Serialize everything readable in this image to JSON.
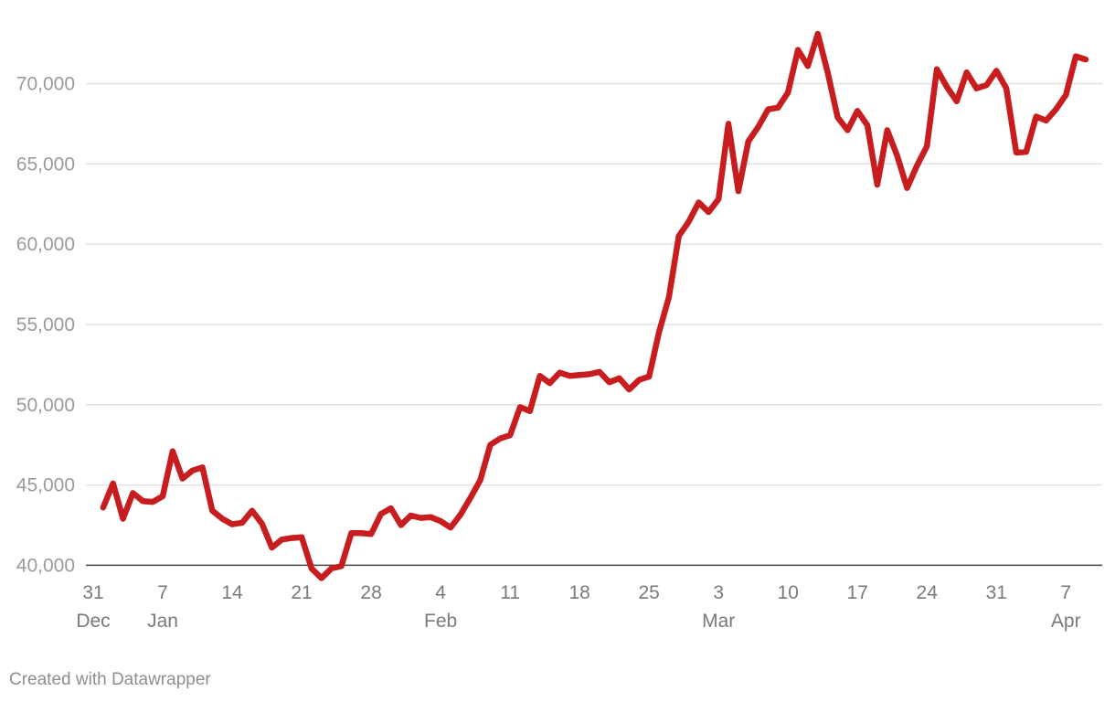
{
  "credit": "Created with Datawrapper",
  "colors": {
    "line": "#c81d1f",
    "grid": "#e1e1e1",
    "axis_text": "#9a9a9a",
    "baseline": "#444444"
  },
  "chart_data": {
    "type": "line",
    "title": "",
    "xlabel": "",
    "ylabel": "",
    "grid": true,
    "legend": "none",
    "ylim": [
      39000,
      73500
    ],
    "xlim": [
      "2023-12-31",
      "2024-04-09"
    ],
    "y_ticks": [
      {
        "value": 40000,
        "label": "40,000"
      },
      {
        "value": 45000,
        "label": "45,000"
      },
      {
        "value": 50000,
        "label": "50,000"
      },
      {
        "value": 55000,
        "label": "55,000"
      },
      {
        "value": 60000,
        "label": "60,000"
      },
      {
        "value": 65000,
        "label": "65,000"
      },
      {
        "value": 70000,
        "label": "70,000"
      }
    ],
    "x_ticks": [
      {
        "date": "2023-12-31",
        "label": "31",
        "sublabel": "Dec"
      },
      {
        "date": "2024-01-07",
        "label": "7",
        "sublabel": "Jan"
      },
      {
        "date": "2024-01-14",
        "label": "14",
        "sublabel": ""
      },
      {
        "date": "2024-01-21",
        "label": "21",
        "sublabel": ""
      },
      {
        "date": "2024-01-28",
        "label": "28",
        "sublabel": ""
      },
      {
        "date": "2024-02-04",
        "label": "4",
        "sublabel": "Feb"
      },
      {
        "date": "2024-02-11",
        "label": "11",
        "sublabel": ""
      },
      {
        "date": "2024-02-18",
        "label": "18",
        "sublabel": ""
      },
      {
        "date": "2024-02-25",
        "label": "25",
        "sublabel": ""
      },
      {
        "date": "2024-03-03",
        "label": "3",
        "sublabel": "Mar"
      },
      {
        "date": "2024-03-10",
        "label": "10",
        "sublabel": ""
      },
      {
        "date": "2024-03-17",
        "label": "17",
        "sublabel": ""
      },
      {
        "date": "2024-03-24",
        "label": "24",
        "sublabel": ""
      },
      {
        "date": "2024-03-31",
        "label": "31",
        "sublabel": ""
      },
      {
        "date": "2024-04-07",
        "label": "7",
        "sublabel": "Apr"
      }
    ],
    "series": [
      {
        "points": [
          [
            "2024-01-01",
            43600
          ],
          [
            "2024-01-02",
            45100
          ],
          [
            "2024-01-03",
            42900
          ],
          [
            "2024-01-04",
            44500
          ],
          [
            "2024-01-05",
            44000
          ],
          [
            "2024-01-06",
            43950
          ],
          [
            "2024-01-07",
            44300
          ],
          [
            "2024-01-08",
            47100
          ],
          [
            "2024-01-09",
            45400
          ],
          [
            "2024-01-10",
            45900
          ],
          [
            "2024-01-11",
            46100
          ],
          [
            "2024-01-12",
            43400
          ],
          [
            "2024-01-13",
            42900
          ],
          [
            "2024-01-14",
            42550
          ],
          [
            "2024-01-15",
            42650
          ],
          [
            "2024-01-16",
            43400
          ],
          [
            "2024-01-17",
            42600
          ],
          [
            "2024-01-18",
            41100
          ],
          [
            "2024-01-19",
            41600
          ],
          [
            "2024-01-20",
            41700
          ],
          [
            "2024-01-21",
            41750
          ],
          [
            "2024-01-22",
            39800
          ],
          [
            "2024-01-23",
            39200
          ],
          [
            "2024-01-24",
            39800
          ],
          [
            "2024-01-25",
            39950
          ],
          [
            "2024-01-26",
            42000
          ],
          [
            "2024-01-27",
            42000
          ],
          [
            "2024-01-28",
            41950
          ],
          [
            "2024-01-29",
            43200
          ],
          [
            "2024-01-30",
            43550
          ],
          [
            "2024-01-31",
            42500
          ],
          [
            "2024-02-01",
            43100
          ],
          [
            "2024-02-02",
            42950
          ],
          [
            "2024-02-03",
            43000
          ],
          [
            "2024-02-04",
            42750
          ],
          [
            "2024-02-05",
            42350
          ],
          [
            "2024-02-06",
            43150
          ],
          [
            "2024-02-07",
            44200
          ],
          [
            "2024-02-08",
            45300
          ],
          [
            "2024-02-09",
            47500
          ],
          [
            "2024-02-10",
            47900
          ],
          [
            "2024-02-11",
            48100
          ],
          [
            "2024-02-12",
            49850
          ],
          [
            "2024-02-13",
            49600
          ],
          [
            "2024-02-14",
            51800
          ],
          [
            "2024-02-15",
            51350
          ],
          [
            "2024-02-16",
            52000
          ],
          [
            "2024-02-17",
            51800
          ],
          [
            "2024-02-18",
            51850
          ],
          [
            "2024-02-19",
            51900
          ],
          [
            "2024-02-20",
            52050
          ],
          [
            "2024-02-21",
            51400
          ],
          [
            "2024-02-22",
            51650
          ],
          [
            "2024-02-23",
            50950
          ],
          [
            "2024-02-24",
            51550
          ],
          [
            "2024-02-25",
            51750
          ],
          [
            "2024-02-26",
            54500
          ],
          [
            "2024-02-27",
            56700
          ],
          [
            "2024-02-28",
            60500
          ],
          [
            "2024-02-29",
            61400
          ],
          [
            "2024-03-01",
            62600
          ],
          [
            "2024-03-02",
            62000
          ],
          [
            "2024-03-03",
            62800
          ],
          [
            "2024-03-04",
            67500
          ],
          [
            "2024-03-05",
            63300
          ],
          [
            "2024-03-06",
            66400
          ],
          [
            "2024-03-07",
            67300
          ],
          [
            "2024-03-08",
            68400
          ],
          [
            "2024-03-09",
            68500
          ],
          [
            "2024-03-10",
            69450
          ],
          [
            "2024-03-11",
            72100
          ],
          [
            "2024-03-12",
            71100
          ],
          [
            "2024-03-13",
            73100
          ],
          [
            "2024-03-14",
            70700
          ],
          [
            "2024-03-15",
            67900
          ],
          [
            "2024-03-16",
            67100
          ],
          [
            "2024-03-17",
            68300
          ],
          [
            "2024-03-18",
            67400
          ],
          [
            "2024-03-19",
            63700
          ],
          [
            "2024-03-20",
            67100
          ],
          [
            "2024-03-21",
            65500
          ],
          [
            "2024-03-22",
            63500
          ],
          [
            "2024-03-23",
            64900
          ],
          [
            "2024-03-24",
            66100
          ],
          [
            "2024-03-25",
            70900
          ],
          [
            "2024-03-26",
            69800
          ],
          [
            "2024-03-27",
            68900
          ],
          [
            "2024-03-28",
            70700
          ],
          [
            "2024-03-29",
            69700
          ],
          [
            "2024-03-30",
            69900
          ],
          [
            "2024-03-31",
            70800
          ],
          [
            "2024-04-01",
            69700
          ],
          [
            "2024-04-02",
            65700
          ],
          [
            "2024-04-03",
            65750
          ],
          [
            "2024-04-04",
            67950
          ],
          [
            "2024-04-05",
            67700
          ],
          [
            "2024-04-06",
            68400
          ],
          [
            "2024-04-07",
            69300
          ],
          [
            "2024-04-08",
            71700
          ],
          [
            "2024-04-09",
            71500
          ]
        ]
      }
    ]
  }
}
